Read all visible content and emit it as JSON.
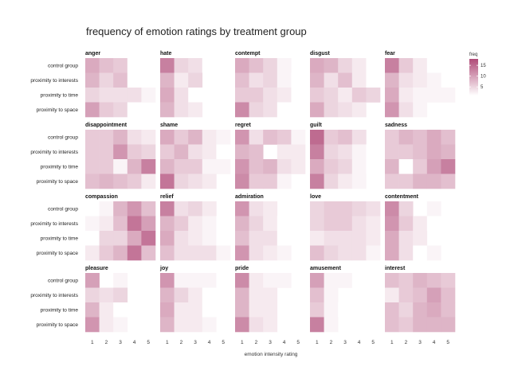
{
  "chart_data": {
    "type": "heatmap",
    "title": "frequency of emotion ratings by treatment group",
    "xlabel": "emotion intensity rating",
    "ylabel": "",
    "x": [
      "1",
      "2",
      "3",
      "4",
      "5"
    ],
    "rows": [
      "control group",
      "proximity to interests",
      "proximity to time",
      "proximity to space"
    ],
    "legend": {
      "title": "freq",
      "ticks": [
        5,
        10,
        15
      ],
      "range": [
        1,
        18
      ],
      "low_color": "#ffffff",
      "high_color": "#b04b78"
    },
    "grid": false,
    "panels": [
      {
        "name": "anger",
        "values": [
          [
            9,
            7,
            6,
            1,
            0
          ],
          [
            8,
            5,
            7,
            1,
            0
          ],
          [
            5,
            4,
            4,
            4,
            2
          ],
          [
            10,
            6,
            5,
            1,
            0
          ]
        ]
      },
      {
        "name": "hate",
        "values": [
          [
            13,
            5,
            4,
            1,
            0
          ],
          [
            8,
            3,
            5,
            0,
            0
          ],
          [
            9,
            4,
            1,
            1,
            1
          ],
          [
            8,
            4,
            3,
            0,
            0
          ]
        ]
      },
      {
        "name": "contempt",
        "values": [
          [
            9,
            7,
            5,
            2,
            0
          ],
          [
            7,
            4,
            5,
            2,
            1
          ],
          [
            6,
            6,
            4,
            3,
            1
          ],
          [
            12,
            5,
            4,
            1,
            0
          ]
        ]
      },
      {
        "name": "disgust",
        "values": [
          [
            9,
            8,
            5,
            3,
            1
          ],
          [
            8,
            4,
            7,
            3,
            1
          ],
          [
            6,
            5,
            3,
            6,
            5
          ],
          [
            9,
            5,
            4,
            3,
            0
          ]
        ]
      },
      {
        "name": "fear",
        "values": [
          [
            13,
            6,
            3,
            1,
            0
          ],
          [
            8,
            4,
            3,
            2,
            0
          ],
          [
            9,
            3,
            2,
            2,
            2
          ],
          [
            11,
            4,
            2,
            0,
            0
          ]
        ]
      },
      {
        "name": "disappointment",
        "values": [
          [
            6,
            6,
            8,
            4,
            3
          ],
          [
            6,
            6,
            11,
            6,
            5
          ],
          [
            6,
            6,
            2,
            8,
            13
          ],
          [
            7,
            8,
            7,
            6,
            3
          ]
        ]
      },
      {
        "name": "shame",
        "values": [
          [
            9,
            6,
            8,
            3,
            2
          ],
          [
            6,
            8,
            4,
            3,
            1
          ],
          [
            8,
            6,
            6,
            2,
            2
          ],
          [
            14,
            5,
            4,
            3,
            0
          ]
        ]
      },
      {
        "name": "regret",
        "values": [
          [
            11,
            4,
            7,
            6,
            2
          ],
          [
            8,
            7,
            0,
            3,
            3
          ],
          [
            11,
            7,
            8,
            4,
            3
          ],
          [
            12,
            6,
            6,
            2,
            0
          ]
        ]
      },
      {
        "name": "guilt",
        "values": [
          [
            15,
            6,
            7,
            4,
            0
          ],
          [
            13,
            5,
            4,
            2,
            1
          ],
          [
            9,
            6,
            5,
            2,
            1
          ],
          [
            13,
            5,
            3,
            2,
            0
          ]
        ]
      },
      {
        "name": "sadness",
        "values": [
          [
            6,
            8,
            7,
            9,
            7
          ],
          [
            6,
            6,
            7,
            9,
            8
          ],
          [
            8,
            1,
            6,
            10,
            13
          ],
          [
            6,
            6,
            8,
            8,
            7
          ]
        ]
      },
      {
        "name": "compassion",
        "values": [
          [
            1,
            2,
            8,
            11,
            7
          ],
          [
            2,
            3,
            7,
            14,
            10
          ],
          [
            1,
            5,
            5,
            9,
            14
          ],
          [
            3,
            6,
            8,
            14,
            7
          ]
        ]
      },
      {
        "name": "relief",
        "values": [
          [
            13,
            4,
            5,
            3,
            0
          ],
          [
            8,
            6,
            3,
            2,
            1
          ],
          [
            9,
            4,
            3,
            2,
            1
          ],
          [
            7,
            4,
            4,
            4,
            2
          ]
        ]
      },
      {
        "name": "admiration",
        "values": [
          [
            11,
            4,
            3,
            0,
            0
          ],
          [
            8,
            5,
            3,
            1,
            0
          ],
          [
            7,
            4,
            4,
            1,
            0
          ],
          [
            11,
            4,
            3,
            2,
            0
          ]
        ]
      },
      {
        "name": "love",
        "values": [
          [
            5,
            6,
            6,
            5,
            4
          ],
          [
            5,
            6,
            6,
            4,
            3
          ],
          [
            3,
            4,
            4,
            4,
            3
          ],
          [
            7,
            5,
            4,
            4,
            2
          ]
        ]
      },
      {
        "name": "contentment",
        "values": [
          [
            12,
            5,
            0,
            2,
            0
          ],
          [
            11,
            6,
            3,
            1,
            0
          ],
          [
            9,
            4,
            3,
            0,
            0
          ],
          [
            9,
            4,
            1,
            2,
            0
          ]
        ]
      },
      {
        "name": "pleasure",
        "values": [
          [
            10,
            0,
            2,
            0,
            0
          ],
          [
            5,
            4,
            5,
            0,
            0
          ],
          [
            8,
            3,
            1,
            0,
            0
          ],
          [
            11,
            3,
            2,
            0,
            0
          ]
        ]
      },
      {
        "name": "joy",
        "values": [
          [
            11,
            2,
            2,
            2,
            1
          ],
          [
            8,
            5,
            3,
            1,
            0
          ],
          [
            9,
            3,
            3,
            1,
            0
          ],
          [
            8,
            3,
            3,
            2,
            0
          ]
        ]
      },
      {
        "name": "pride",
        "values": [
          [
            12,
            3,
            2,
            2,
            0
          ],
          [
            8,
            3,
            3,
            0,
            0
          ],
          [
            8,
            3,
            3,
            0,
            0
          ],
          [
            12,
            4,
            3,
            0,
            0
          ]
        ]
      },
      {
        "name": "amusement",
        "values": [
          [
            10,
            2,
            2,
            1,
            0
          ],
          [
            7,
            2,
            0,
            0,
            0
          ],
          [
            6,
            2,
            1,
            0,
            0
          ],
          [
            13,
            2,
            0,
            0,
            0
          ]
        ]
      },
      {
        "name": "interest",
        "values": [
          [
            7,
            6,
            8,
            7,
            6
          ],
          [
            3,
            6,
            7,
            10,
            7
          ],
          [
            7,
            5,
            8,
            9,
            7
          ],
          [
            7,
            6,
            8,
            8,
            8
          ]
        ]
      }
    ]
  }
}
